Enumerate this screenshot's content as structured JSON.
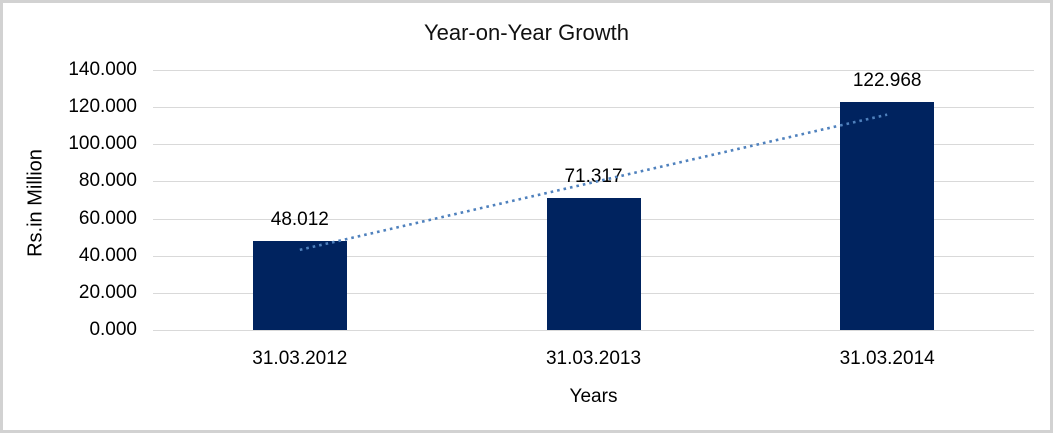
{
  "chart_data": {
    "type": "bar",
    "title": "Year-on-Year Growth",
    "xlabel": "Years",
    "ylabel": "Rs.in Million",
    "categories": [
      "31.03.2012",
      "31.03.2013",
      "31.03.2014"
    ],
    "series": [
      {
        "name": "Growth",
        "values": [
          48.012,
          71.317,
          122.968
        ],
        "data_labels": [
          "48.012",
          "71.317",
          "122.968"
        ]
      }
    ],
    "ylim": [
      0,
      140
    ],
    "ytick_step": 20,
    "ytick_labels": [
      "0.000",
      "20.000",
      "40.000",
      "60.000",
      "80.000",
      "100.000",
      "120.000",
      "140.000"
    ],
    "grid": true,
    "legend": "none",
    "trendline": {
      "type": "linear",
      "style": "dotted"
    },
    "colors": {
      "bar": "#00235f",
      "trendline": "#4f81bd",
      "gridline": "#d9d9d9",
      "frame_border": "#d2d2d2",
      "text": "#000000"
    }
  }
}
